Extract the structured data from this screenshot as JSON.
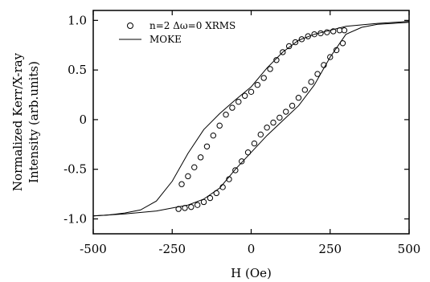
{
  "chart_data": {
    "type": "scatter",
    "xlabel": "H (Oe)",
    "ylabel_lines": [
      "Normalized Kerr/X-ray",
      "Intensity (arb.units)"
    ],
    "xlim": [
      -500,
      500
    ],
    "ylim": [
      -1.15,
      1.1
    ],
    "x_ticks": [
      -500,
      -250,
      0,
      250,
      500
    ],
    "x_tick_labels": [
      "-500",
      "-250",
      "0",
      "250",
      "500"
    ],
    "y_ticks": [
      1.0,
      0.5,
      0,
      -0.5,
      -1.0
    ],
    "y_tick_labels": [
      "1.0",
      "0.5",
      "0",
      "-0.5",
      "-1.0"
    ],
    "grid": false,
    "legend_position": "top-left",
    "series": [
      {
        "name": "n=2 Δω=0 XRMS",
        "marker": "open-circle",
        "branches": [
          {
            "x": [
              -220,
              -200,
              -180,
              -160,
              -140,
              -120,
              -100,
              -80,
              -60,
              -40,
              -20,
              0,
              20,
              40,
              60,
              80,
              100,
              120,
              140,
              160,
              180,
              200,
              220,
              240,
              260,
              280,
              295
            ],
            "y": [
              -0.65,
              -0.57,
              -0.48,
              -0.38,
              -0.27,
              -0.16,
              -0.06,
              0.05,
              0.12,
              0.18,
              0.24,
              0.28,
              0.35,
              0.42,
              0.51,
              0.6,
              0.68,
              0.74,
              0.78,
              0.81,
              0.84,
              0.86,
              0.87,
              0.88,
              0.89,
              0.9,
              0.9
            ]
          },
          {
            "x": [
              -230,
              -210,
              -190,
              -170,
              -150,
              -130,
              -110,
              -90,
              -70,
              -50,
              -30,
              -10,
              10,
              30,
              50,
              70,
              90,
              110,
              130,
              150,
              170,
              190,
              210,
              230,
              250,
              270,
              290
            ],
            "y": [
              -0.9,
              -0.89,
              -0.88,
              -0.86,
              -0.83,
              -0.79,
              -0.74,
              -0.68,
              -0.6,
              -0.51,
              -0.42,
              -0.33,
              -0.24,
              -0.15,
              -0.08,
              -0.03,
              0.02,
              0.08,
              0.14,
              0.22,
              0.3,
              0.38,
              0.46,
              0.55,
              0.63,
              0.7,
              0.77
            ]
          }
        ]
      },
      {
        "name": "MOKE",
        "marker": "line",
        "branches": [
          {
            "x": [
              500,
              400,
              300,
              250,
              200,
              150,
              100,
              50,
              0,
              -50,
              -100,
              -150,
              -200,
              -250,
              -300,
              -350,
              -400,
              -450,
              -500
            ],
            "y": [
              0.99,
              0.97,
              0.94,
              0.9,
              0.86,
              0.8,
              0.68,
              0.52,
              0.33,
              0.2,
              0.06,
              -0.1,
              -0.34,
              -0.62,
              -0.82,
              -0.91,
              -0.94,
              -0.96,
              -0.97
            ]
          },
          {
            "x": [
              -500,
              -400,
              -300,
              -250,
              -200,
              -150,
              -100,
              -50,
              0,
              50,
              100,
              150,
              200,
              250,
              300,
              350,
              400,
              450,
              500
            ],
            "y": [
              -0.97,
              -0.95,
              -0.92,
              -0.89,
              -0.86,
              -0.8,
              -0.69,
              -0.5,
              -0.33,
              -0.16,
              -0.01,
              0.14,
              0.35,
              0.63,
              0.86,
              0.93,
              0.96,
              0.97,
              0.98
            ]
          }
        ]
      }
    ]
  }
}
